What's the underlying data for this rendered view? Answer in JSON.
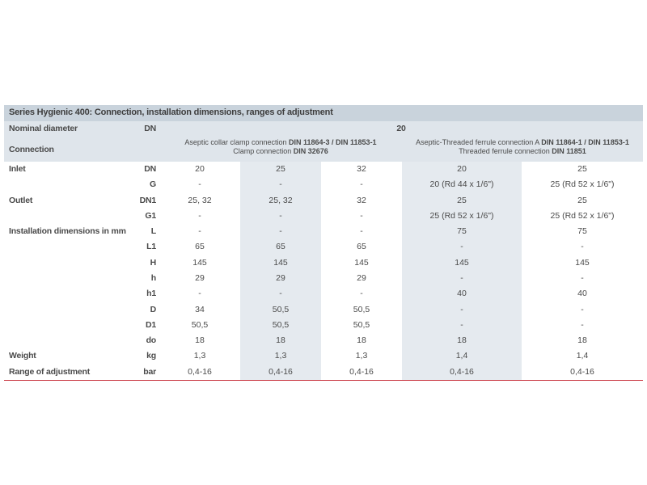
{
  "title": "Series Hygienic 400: Connection, installation dimensions, ranges of adjustment",
  "nominal": {
    "label": "Nominal diameter",
    "unit": "DN",
    "value": "20"
  },
  "connection": {
    "label": "Connection",
    "groups": [
      {
        "lines": [
          {
            "text": "Aseptic collar clamp connection",
            "bold": "DIN 11864-3 / DIN 11853-1"
          },
          {
            "text": "Clamp connection",
            "bold": "DIN 32676"
          }
        ]
      },
      {
        "lines": [
          {
            "text": "Aseptic-Threaded ferrule connection A",
            "bold": "DIN 11864-1 / DIN 11853-1"
          },
          {
            "text": "Threaded ferrule connection",
            "bold": "DIN 11851"
          }
        ]
      }
    ]
  },
  "rows": [
    {
      "label": "Inlet",
      "unit": "DN",
      "values": [
        "20",
        "25",
        "32",
        "20",
        "25"
      ]
    },
    {
      "unit": "G",
      "values": [
        "-",
        "-",
        "-",
        "20 (Rd 44 x 1/6\")",
        "25 (Rd 52 x 1/6\")"
      ]
    },
    {
      "label": "Outlet",
      "unit": "DN1",
      "values": [
        "25, 32",
        "25, 32",
        "32",
        "25",
        "25"
      ]
    },
    {
      "unit": "G1",
      "values": [
        "-",
        "-",
        "-",
        "25 (Rd 52 x 1/6\")",
        "25 (Rd 52 x 1/6\")"
      ]
    },
    {
      "label": "Installation dimensions in mm",
      "unit": "L",
      "values": [
        "-",
        "-",
        "-",
        "75",
        "75"
      ]
    },
    {
      "unit": "L1",
      "values": [
        "65",
        "65",
        "65",
        "-",
        "-"
      ]
    },
    {
      "unit": "H",
      "values": [
        "145",
        "145",
        "145",
        "145",
        "145"
      ]
    },
    {
      "unit": "h",
      "values": [
        "29",
        "29",
        "29",
        "-",
        "-"
      ]
    },
    {
      "unit": "h1",
      "values": [
        "-",
        "-",
        "-",
        "40",
        "40"
      ]
    },
    {
      "unit": "D",
      "values": [
        "34",
        "50,5",
        "50,5",
        "-",
        "-"
      ]
    },
    {
      "unit": "D1",
      "values": [
        "50,5",
        "50,5",
        "50,5",
        "-",
        "-"
      ]
    },
    {
      "unit": "do",
      "values": [
        "18",
        "18",
        "18",
        "18",
        "18"
      ]
    },
    {
      "label": "Weight",
      "unit": "kg",
      "values": [
        "1,3",
        "1,3",
        "1,3",
        "1,4",
        "1,4"
      ]
    },
    {
      "label": "Range of adjustment",
      "unit": "bar",
      "values": [
        "0,4-16",
        "0,4-16",
        "0,4-16",
        "0,4-16",
        "0,4-16"
      ]
    }
  ]
}
